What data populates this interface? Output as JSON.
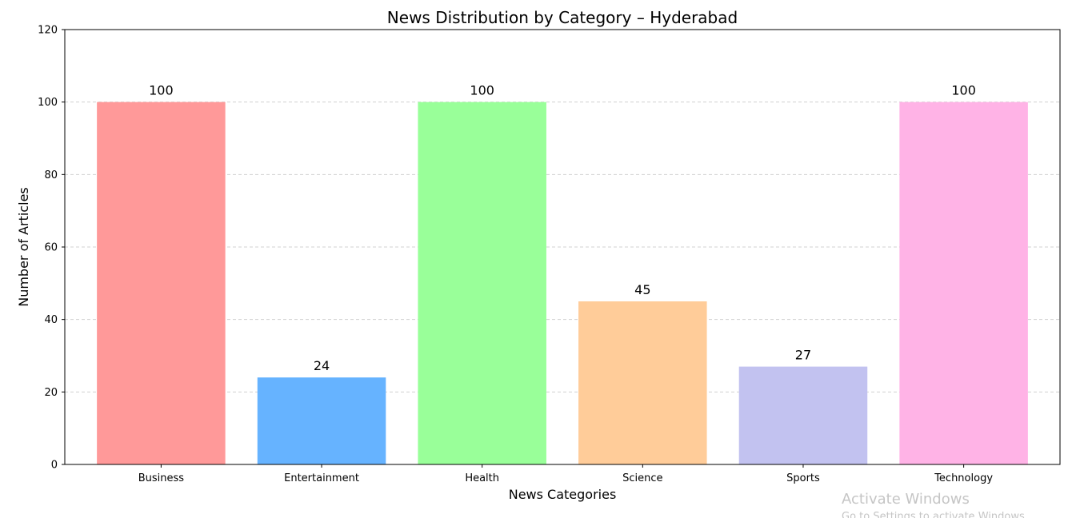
{
  "chart_data": {
    "type": "bar",
    "title": "News Distribution by Category – Hyderabad",
    "xlabel": "News Categories",
    "ylabel": "Number of Articles",
    "categories": [
      "Business",
      "Entertainment",
      "Health",
      "Science",
      "Sports",
      "Technology"
    ],
    "values": [
      100,
      24,
      100,
      45,
      27,
      100
    ],
    "colors": [
      "#ff9999",
      "#66b3ff",
      "#99ff99",
      "#ffcc99",
      "#c2c2f0",
      "#ffb3e6"
    ],
    "ylim": [
      0,
      120
    ],
    "yticks": [
      0,
      20,
      40,
      60,
      80,
      100,
      120
    ],
    "grid": "y-dashed",
    "data_labels": true
  },
  "watermark": {
    "title": "Activate Windows",
    "subtitle": "Go to Settings to activate Windows."
  }
}
